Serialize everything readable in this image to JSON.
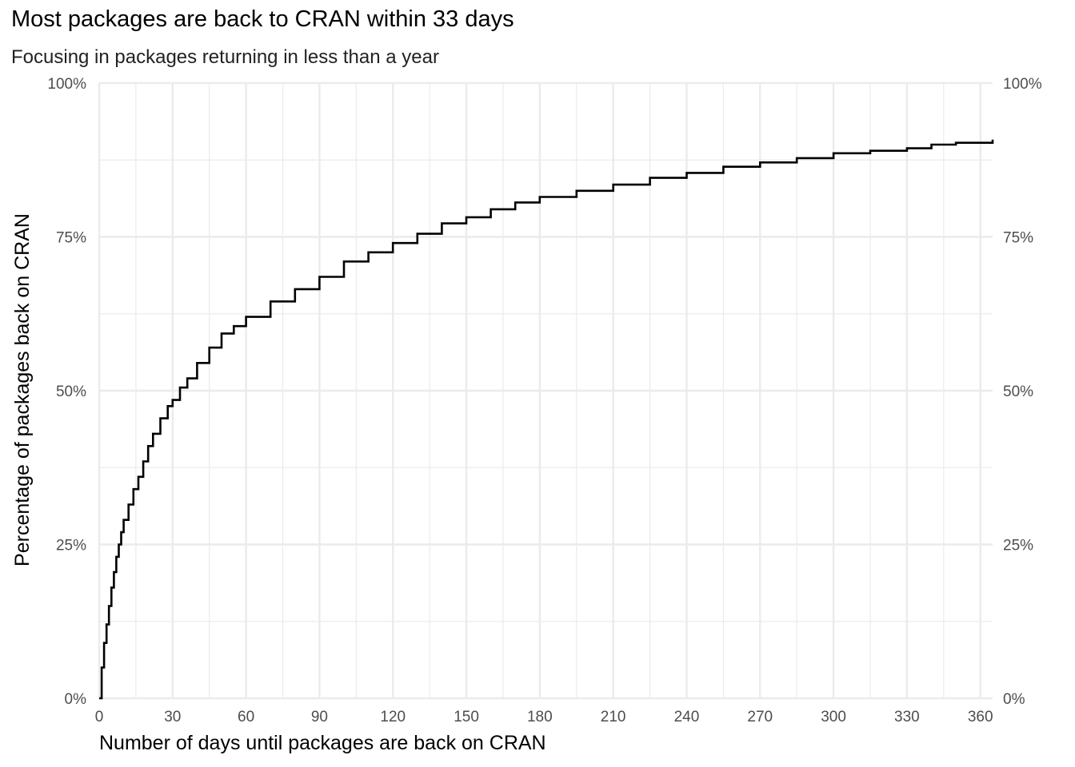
{
  "chart_data": {
    "type": "line",
    "title": "Most packages are back to CRAN within 33 days",
    "subtitle": "Focusing in packages returning in less than a year",
    "xlabel": "Number of days until packages are back on CRAN",
    "ylabel": "Percentage of packages back on CRAN",
    "xlim": [
      0,
      365
    ],
    "ylim": [
      0,
      1
    ],
    "x_ticks": [
      0,
      30,
      60,
      90,
      120,
      150,
      180,
      210,
      240,
      270,
      300,
      330,
      360
    ],
    "x_tick_labels": [
      "0",
      "30",
      "60",
      "90",
      "120",
      "150",
      "180",
      "210",
      "240",
      "270",
      "300",
      "330",
      "360"
    ],
    "y_ticks": [
      0,
      0.25,
      0.5,
      0.75,
      1
    ],
    "y_tick_labels": [
      "0%",
      "25%",
      "50%",
      "75%",
      "100%"
    ],
    "secondary_y_axis": "right",
    "grid": true,
    "line_color": "#000000",
    "grid_color": "#ebebeb",
    "series": [
      {
        "x": [
          0,
          1,
          2,
          3,
          4,
          5,
          6,
          7,
          8,
          9,
          10,
          12,
          14,
          16,
          18,
          20,
          22,
          25,
          28,
          30,
          33,
          36,
          40,
          45,
          50,
          55,
          60,
          70,
          80,
          90,
          100,
          110,
          120,
          130,
          140,
          150,
          160,
          170,
          180,
          195,
          210,
          225,
          240,
          255,
          270,
          285,
          300,
          315,
          330,
          340,
          350,
          365
        ],
        "y": [
          0,
          0.05,
          0.09,
          0.12,
          0.15,
          0.18,
          0.205,
          0.23,
          0.25,
          0.27,
          0.29,
          0.315,
          0.34,
          0.36,
          0.385,
          0.41,
          0.43,
          0.455,
          0.475,
          0.485,
          0.505,
          0.52,
          0.545,
          0.57,
          0.593,
          0.605,
          0.62,
          0.645,
          0.665,
          0.685,
          0.71,
          0.725,
          0.74,
          0.755,
          0.772,
          0.782,
          0.795,
          0.806,
          0.815,
          0.825,
          0.835,
          0.846,
          0.854,
          0.864,
          0.871,
          0.878,
          0.886,
          0.89,
          0.894,
          0.9,
          0.903,
          0.908
        ]
      }
    ]
  }
}
